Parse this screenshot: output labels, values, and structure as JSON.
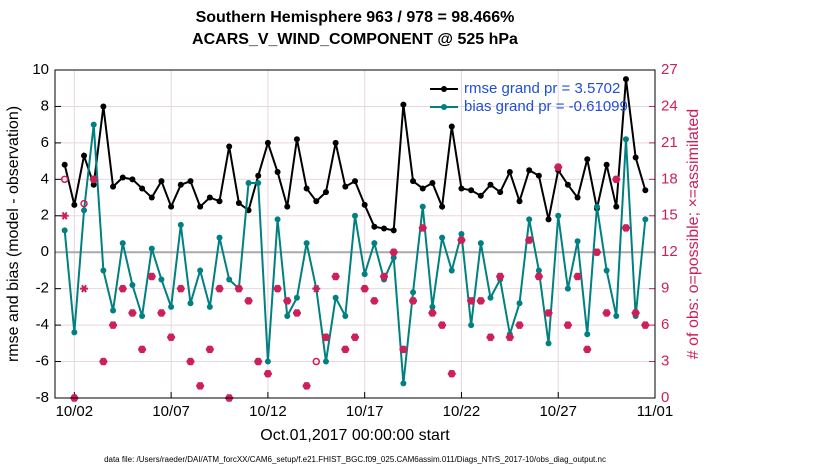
{
  "chart_data": {
    "type": "line",
    "title": "Southern Hemisphere 963 / 978 = 98.466%",
    "subtitle": "ACARS_V_WIND_COMPONENT @ 525 hPa",
    "xlabel": "Oct.01,2017 00:00:00 start",
    "ylabel": "rmse and bias (model - observation)",
    "y2label": "# of obs: o=possible; ×=assimilated",
    "footnote": "data file: /Users/raeder/DAI/ATM_forcXX/CAM6_setup/f.e21.FHIST_BGC.f09_025.CAM6assim.011/Diags_NTrS_2017-10/obs_diag_output.nc",
    "legend": "northeast",
    "grid": true,
    "x": [
      0.5,
      1,
      1.5,
      2,
      2.5,
      3,
      3.5,
      4,
      4.5,
      5,
      5.5,
      6,
      6.5,
      7,
      7.5,
      8,
      8.5,
      9,
      9.5,
      10,
      10.5,
      11,
      11.5,
      12,
      12.5,
      13,
      13.5,
      14,
      14.5,
      15,
      15.5,
      16,
      16.5,
      17,
      17.5,
      18,
      18.5,
      19,
      19.5,
      20,
      20.5,
      21,
      21.5,
      22,
      22.5,
      23,
      23.5,
      24,
      24.5,
      25,
      25.5,
      26,
      26.5,
      27,
      27.5,
      28,
      28.5,
      29,
      29.5,
      30,
      30.5
    ],
    "xlim": [
      0,
      31
    ],
    "xticks": [
      {
        "value": 1,
        "label": "10/02"
      },
      {
        "value": 6,
        "label": "10/07"
      },
      {
        "value": 11,
        "label": "10/12"
      },
      {
        "value": 16,
        "label": "10/17"
      },
      {
        "value": 21,
        "label": "10/22"
      },
      {
        "value": 26,
        "label": "10/27"
      },
      {
        "value": 31,
        "label": "11/01"
      }
    ],
    "ylim": [
      -8,
      10
    ],
    "yticks": [
      -8,
      -6,
      -4,
      -2,
      0,
      2,
      4,
      6,
      8,
      10
    ],
    "y2lim": [
      0,
      27
    ],
    "y2ticks": [
      0,
      3,
      6,
      9,
      12,
      15,
      18,
      21,
      24,
      27
    ],
    "series": [
      {
        "name": "rmse grand pr = 3.5702",
        "color": "#000000",
        "marker": "dot",
        "values": [
          4.8,
          2.6,
          5.3,
          3.7,
          8.0,
          3.6,
          4.1,
          4.0,
          3.5,
          3.0,
          3.9,
          2.5,
          3.7,
          3.9,
          2.5,
          3.0,
          2.8,
          5.8,
          2.7,
          2.3,
          4.2,
          6.0,
          4.4,
          2.5,
          6.2,
          3.5,
          2.8,
          3.3,
          6.0,
          3.6,
          3.9,
          2.6,
          1.4,
          1.3,
          1.2,
          8.1,
          3.9,
          3.5,
          3.8,
          2.5,
          6.9,
          3.5,
          3.4,
          3.1,
          3.7,
          3.3,
          4.4,
          2.8,
          4.5,
          4.2,
          1.8,
          4.5,
          3.7,
          3.0,
          5.1,
          2.4,
          4.8,
          2.5,
          9.5,
          5.2,
          3.4
        ]
      },
      {
        "name": "bias grand pr = -0.61099",
        "color": "#008080",
        "marker": "dot",
        "values": [
          1.2,
          -4.4,
          2.3,
          7.0,
          -1.0,
          -3.2,
          0.5,
          -1.8,
          -3.5,
          0.2,
          -1.5,
          -3.0,
          1.5,
          -2.8,
          -1.0,
          -3.0,
          0.8,
          -1.5,
          -2.0,
          3.8,
          3.8,
          -6.0,
          1.8,
          -3.5,
          -2.5,
          0.5,
          -2.0,
          -6.0,
          -2.5,
          -3.5,
          2.0,
          -1.2,
          0.5,
          -1.5,
          -0.3,
          -7.2,
          -2.2,
          2.5,
          -3.0,
          0.8,
          -1.0,
          1.0,
          -4.0,
          0.5,
          -2.5,
          -1.5,
          -4.5,
          -2.8,
          1.8,
          -1.0,
          -5.0,
          2.0,
          -2.0,
          0.6,
          -4.5,
          2.5,
          -1.0,
          -3.5,
          6.2,
          -3.5,
          1.8
        ]
      },
      {
        "name": "possible",
        "color": "#cc1f5a",
        "marker": "circle",
        "axis": "y2",
        "values": [
          18,
          0,
          16,
          18,
          3,
          6,
          9,
          7,
          4,
          10,
          7,
          5,
          9,
          3,
          1,
          4,
          9,
          0,
          9,
          8,
          3,
          2,
          9,
          8,
          7,
          1,
          3,
          5,
          10,
          4,
          5,
          9,
          8,
          10,
          12,
          4,
          8,
          14,
          7,
          6,
          2,
          13,
          8,
          8,
          5,
          10,
          5,
          6,
          13,
          10,
          7,
          19,
          6,
          10,
          4,
          12,
          7,
          18,
          14,
          7,
          6
        ]
      },
      {
        "name": "assimilated",
        "color": "#cc1f5a",
        "marker": "asterisk",
        "axis": "y2",
        "values": [
          15,
          0,
          9,
          18,
          3,
          6,
          9,
          7,
          4,
          10,
          7,
          5,
          9,
          3,
          1,
          4,
          9,
          0,
          9,
          8,
          3,
          2,
          9,
          8,
          7,
          1,
          9,
          5,
          10,
          4,
          5,
          9,
          8,
          10,
          12,
          4,
          8,
          14,
          7,
          6,
          2,
          13,
          8,
          8,
          5,
          10,
          5,
          6,
          13,
          10,
          7,
          19,
          6,
          10,
          4,
          12,
          7,
          18,
          14,
          7,
          6
        ]
      }
    ]
  }
}
